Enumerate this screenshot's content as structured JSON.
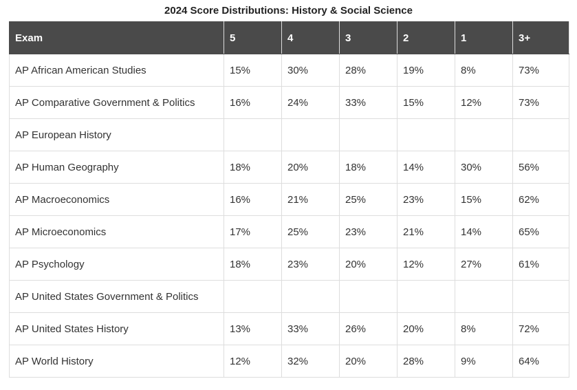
{
  "title": "2024 Score Distributions: History & Social Science",
  "table": {
    "header": [
      "Exam",
      "5",
      "4",
      "3",
      "2",
      "1",
      "3+"
    ],
    "rows": [
      [
        "AP African American Studies",
        "15%",
        "30%",
        "28%",
        "19%",
        "8%",
        "73%"
      ],
      [
        "AP Comparative Government & Politics",
        "16%",
        "24%",
        "33%",
        "15%",
        "12%",
        "73%"
      ],
      [
        "AP European History"
      ],
      [
        "AP Human Geography",
        "18%",
        "20%",
        "18%",
        "14%",
        "30%",
        "56%"
      ],
      [
        "AP Macroeconomics",
        "16%",
        "21%",
        "25%",
        "23%",
        "15%",
        "62%"
      ],
      [
        "AP Microeconomics",
        "17%",
        "25%",
        "23%",
        "21%",
        "14%",
        "65%"
      ],
      [
        "AP Psychology",
        "18%",
        "23%",
        "20%",
        "12%",
        "27%",
        "61%"
      ],
      [
        "AP United States Government & Politics"
      ],
      [
        "AP United States History",
        "13%",
        "33%",
        "26%",
        "20%",
        "8%",
        "72%"
      ],
      [
        "AP World History",
        "12%",
        "32%",
        "20%",
        "28%",
        "9%",
        "64%"
      ]
    ]
  }
}
